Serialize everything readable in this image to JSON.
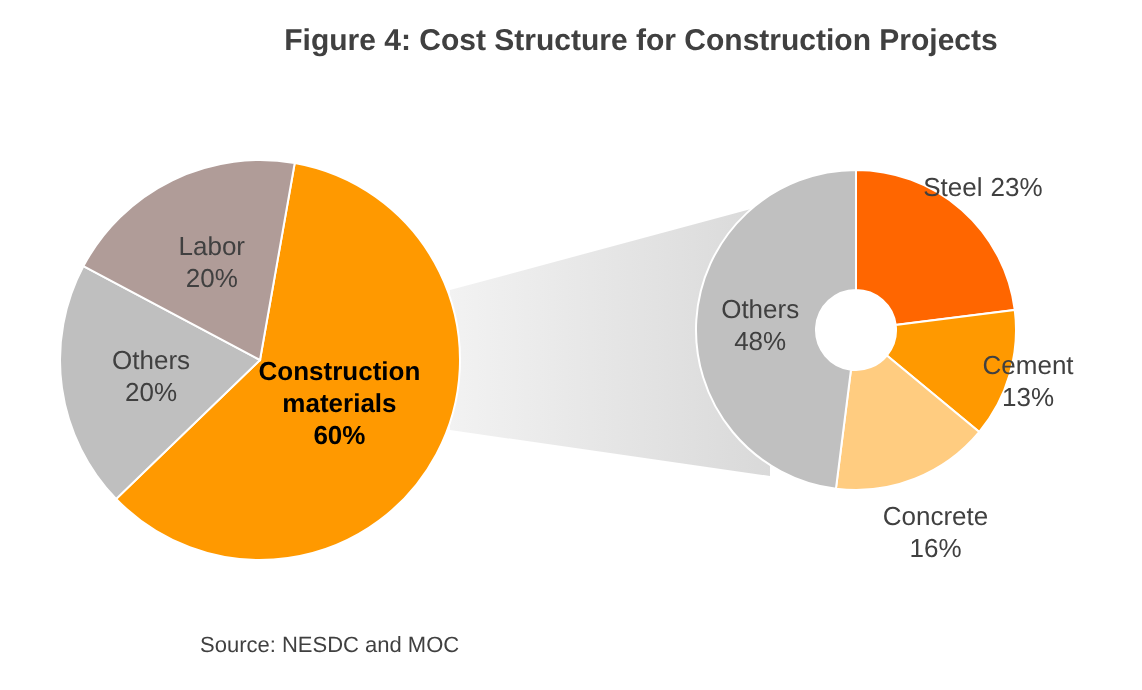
{
  "chart_data": [
    {
      "type": "pie",
      "title": "Figure 4: Cost Structure for Construction Projects",
      "categories": [
        "Construction materials",
        "Others",
        "Labor"
      ],
      "values": [
        60,
        20,
        20
      ],
      "colors": [
        "#ff9900",
        "#bfbfbf",
        "#b09c98"
      ],
      "value_labels": [
        "60%",
        "20%",
        "20%"
      ],
      "annotations": [
        "Source: NESDC and MOC"
      ]
    },
    {
      "type": "donut",
      "categories": [
        "Steel",
        "Cement",
        "Concrete",
        "Others"
      ],
      "values": [
        23,
        13,
        16,
        48
      ],
      "colors": [
        "#ff6600",
        "#ff9900",
        "#ffcc80",
        "#c0c0c0"
      ],
      "value_labels": [
        "23%",
        "13%",
        "16%",
        "48%"
      ]
    }
  ]
}
